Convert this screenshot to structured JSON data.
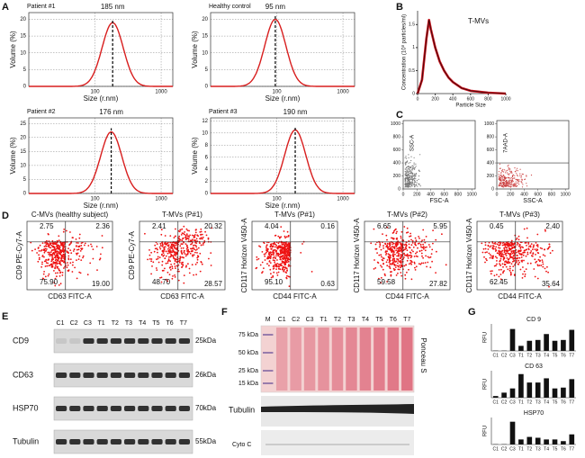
{
  "panel_labels": [
    "A",
    "B",
    "C",
    "D",
    "E",
    "F",
    "G"
  ],
  "chart_data": [
    {
      "type": "size-distribution",
      "title": "Patient #1",
      "peak_label": "185 nm",
      "peak": 185,
      "peak_volume": 19,
      "ylabel": "Volume (%)",
      "xlabel": "Size (r.nm)",
      "log_x": true,
      "xlim": [
        10,
        1500
      ],
      "xticks": [
        100,
        1000
      ],
      "ylim": [
        0,
        22
      ],
      "yticks": [
        0,
        5,
        10,
        15,
        20
      ],
      "color": "#d81e1e"
    },
    {
      "type": "size-distribution",
      "title": "Healthy control",
      "peak_label": "95 nm",
      "peak": 95,
      "peak_volume": 20,
      "ylabel": "Volume (%)",
      "xlabel": "Size (r.nm)",
      "log_x": true,
      "xlim": [
        10,
        1500
      ],
      "xticks": [
        100,
        1000
      ],
      "ylim": [
        0,
        22
      ],
      "yticks": [
        0,
        5,
        10,
        15,
        20
      ],
      "color": "#d81e1e"
    },
    {
      "type": "size-distribution",
      "title": "Patient #2",
      "peak_label": "176 nm",
      "peak": 176,
      "peak_volume": 22,
      "ylabel": "Volume (%)",
      "xlabel": "Size (r.nm)",
      "log_x": true,
      "xlim": [
        10,
        1500
      ],
      "xticks": [
        100,
        1000
      ],
      "ylim": [
        0,
        27
      ],
      "yticks": [
        0,
        5,
        10,
        15,
        20,
        25
      ],
      "color": "#d81e1e"
    },
    {
      "type": "size-distribution",
      "title": "Patient #3",
      "peak_label": "190 nm",
      "peak": 190,
      "peak_volume": 10.5,
      "ylabel": "Volume (%)",
      "xlabel": "Size (r.nm)",
      "log_x": true,
      "xlim": [
        10,
        1500
      ],
      "xticks": [
        100,
        1000
      ],
      "ylim": [
        0,
        12.5
      ],
      "yticks": [
        0,
        2,
        4,
        6,
        8,
        10,
        12
      ],
      "color": "#d81e1e"
    },
    {
      "type": "line",
      "title": "T-MVs",
      "ylabel": "Concentration (10⁸ particles/ml)",
      "xlabel": "Particle Size",
      "x": [
        0,
        50,
        100,
        130,
        150,
        200,
        250,
        300,
        350,
        400,
        500,
        600,
        800,
        1000
      ],
      "values": [
        0,
        0.3,
        1.2,
        1.6,
        1.4,
        1.0,
        0.7,
        0.5,
        0.35,
        0.25,
        0.12,
        0.06,
        0.02,
        0
      ],
      "xlim": [
        0,
        1000
      ],
      "xticks": [
        0,
        200,
        400,
        600,
        800,
        1000
      ],
      "ylim": [
        0,
        1.8
      ],
      "yticks": [
        0,
        0.5,
        1,
        1.5
      ],
      "color": "#c8141e"
    },
    {
      "type": "scatter-density",
      "ylabel": "SSC-A",
      "xlabel": "FSC-A",
      "xlim": [
        0,
        1050
      ],
      "xticks": [
        0,
        200,
        400,
        600,
        800,
        1000
      ],
      "ylim": [
        0,
        1050
      ],
      "yticks": [
        0,
        200,
        400,
        600,
        800,
        1000
      ],
      "gate": false
    },
    {
      "type": "scatter-density",
      "ylabel": "7AAD-A",
      "xlabel": "SSC-A",
      "xlim": [
        0,
        1050
      ],
      "xticks": [
        0,
        200,
        400,
        600,
        800,
        1000
      ],
      "ylim": [
        0,
        1050
      ],
      "yticks": [
        0,
        200,
        400,
        600,
        800,
        1000
      ],
      "gate": true
    },
    {
      "type": "flow-quadrant",
      "title": "C-MVs (healthy subject)",
      "ylabel": "CD9 PE-Cy7-A",
      "xlabel": "CD63 FITC-A",
      "values": [
        2.75,
        2.36,
        75.9,
        19.0
      ],
      "value_labels": [
        "2.75",
        "2.36",
        "75.90",
        "19.00"
      ],
      "color": "#ee1111"
    },
    {
      "type": "flow-quadrant",
      "title": "T-MVs (P#1)",
      "ylabel": "CD9 PE-Cy7-A",
      "xlabel": "CD63 FITC-A",
      "values": [
        2.41,
        20.32,
        48.7,
        28.57
      ],
      "value_labels": [
        "2.41",
        "20.32",
        "48.70",
        "28.57"
      ],
      "color": "#ee1111"
    },
    {
      "type": "flow-quadrant",
      "title": "T-MVs (P#1)",
      "ylabel": "CD117 Horizon V450-A",
      "xlabel": "CD44 FITC-A",
      "values": [
        4.04,
        0.16,
        95.1,
        0.63
      ],
      "value_labels": [
        "4.04",
        "0.16",
        "95.10",
        "0.63"
      ],
      "color": "#ee1111"
    },
    {
      "type": "flow-quadrant",
      "title": "T-MVs (P#2)",
      "ylabel": "CD117 Horizon V450-A",
      "xlabel": "CD44 FITC-A",
      "values": [
        6.65,
        5.95,
        59.58,
        27.82
      ],
      "value_labels": [
        "6.65",
        "5.95",
        "59.58",
        "27.82"
      ],
      "color": "#ee1111"
    },
    {
      "type": "flow-quadrant",
      "title": "T-MVs (P#3)",
      "ylabel": "CD117 Horizon V450-A",
      "xlabel": "CD44 FITC-A",
      "values": [
        0.45,
        2.4,
        62.45,
        35.64
      ],
      "value_labels": [
        "0.45",
        "2,40",
        "62.45",
        "35.64"
      ],
      "color": "#ee1111"
    },
    {
      "type": "bar",
      "title": "CD 9",
      "ylabel": "RFU",
      "categories": [
        "C1",
        "C2",
        "C3",
        "T1",
        "T2",
        "T3",
        "T4",
        "T5",
        "T6",
        "T7"
      ],
      "values": [
        0.02,
        0.02,
        1.3,
        0.3,
        0.6,
        0.65,
        1.0,
        0.6,
        0.65,
        1.25
      ],
      "ylim": [
        0,
        1.6
      ],
      "color": "#111111"
    },
    {
      "type": "bar",
      "title": "CD 63",
      "ylabel": "RFU",
      "categories": [
        "C1",
        "C2",
        "C3",
        "T1",
        "T2",
        "T3",
        "T4",
        "T5",
        "T6",
        "T7"
      ],
      "values": [
        0.1,
        0.3,
        0.55,
        1.4,
        0.9,
        0.9,
        1.15,
        0.55,
        0.6,
        1.1
      ],
      "ylim": [
        0,
        1.6
      ],
      "color": "#111111"
    },
    {
      "type": "bar",
      "title": "HSP70",
      "ylabel": "RFU",
      "categories": [
        "C1",
        "C2",
        "C3",
        "T1",
        "T2",
        "T3",
        "T4",
        "T5",
        "T6",
        "T7"
      ],
      "values": [
        0.02,
        0.02,
        1.35,
        0.3,
        0.45,
        0.4,
        0.3,
        0.3,
        0.2,
        0.6
      ],
      "ylim": [
        0,
        1.6
      ],
      "color": "#111111"
    }
  ],
  "blot_e": {
    "lanes": [
      "C1",
      "C2",
      "C3",
      "T1",
      "T2",
      "T3",
      "T4",
      "T5",
      "T6",
      "T7"
    ],
    "rows": [
      {
        "name": "CD9",
        "size": "25kDa"
      },
      {
        "name": "CD63",
        "size": "26kDa"
      },
      {
        "name": "HSP70",
        "size": "70kDa"
      },
      {
        "name": "Tubulin",
        "size": "55kDa"
      }
    ]
  },
  "gel_f": {
    "lanes": [
      "M",
      "C1",
      "C2",
      "C3",
      "T1",
      "T2",
      "T3",
      "T4",
      "T5",
      "T6",
      "T7"
    ],
    "markers": [
      "75 kDa",
      "50 kDa",
      "25 kDa",
      "15 kDa"
    ],
    "stain": "Ponceau S",
    "blots": [
      "Tubulin",
      "Cyto C"
    ]
  }
}
